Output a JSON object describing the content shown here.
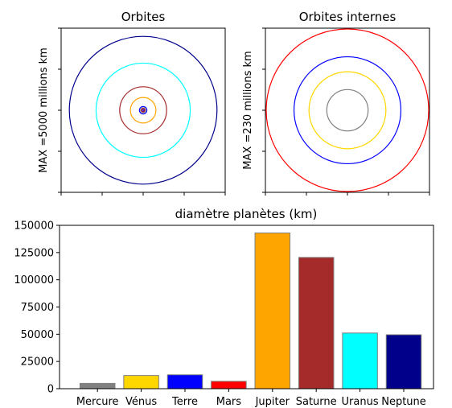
{
  "chart_data": [
    {
      "type": "orbit-diagram",
      "title": "Orbites",
      "ylabel": "MAX =5000 millions km",
      "max_radius": 5000,
      "orbits": [
        {
          "name": "Mercure",
          "radius": 58,
          "color": "#0000cd"
        },
        {
          "name": "Vénus",
          "radius": 108,
          "color": "#ff0000"
        },
        {
          "name": "Terre",
          "radius": 150,
          "color": "#808080"
        },
        {
          "name": "Mars",
          "radius": 228,
          "color": "#0000ff"
        },
        {
          "name": "Jupiter",
          "radius": 778,
          "color": "#ffa500"
        },
        {
          "name": "Saturne",
          "radius": 1430,
          "color": "#a52a2a"
        },
        {
          "name": "Uranus",
          "radius": 2870,
          "color": "#00ffff"
        },
        {
          "name": "Neptune",
          "radius": 4500,
          "color": "#00008b"
        }
      ]
    },
    {
      "type": "orbit-diagram",
      "title": "Orbites internes",
      "ylabel": "MAX =230 millions km",
      "max_radius": 230,
      "orbits": [
        {
          "name": "Mercure",
          "radius": 58,
          "color": "#808080"
        },
        {
          "name": "Vénus",
          "radius": 108,
          "color": "#ffd700"
        },
        {
          "name": "Terre",
          "radius": 150,
          "color": "#0000ff"
        },
        {
          "name": "Mars",
          "radius": 228,
          "color": "#ff0000"
        }
      ]
    },
    {
      "type": "bar",
      "title": "diamètre planètes (km)",
      "categories": [
        "Mercure",
        "Vénus",
        "Terre",
        "Mars",
        "Jupiter",
        "Saturne",
        "Uranus",
        "Neptune"
      ],
      "values": [
        4879,
        12104,
        12756,
        6792,
        142984,
        120536,
        51118,
        49528
      ],
      "colors": [
        "#808080",
        "#ffd700",
        "#0000ff",
        "#ff0000",
        "#ffa500",
        "#a52a2a",
        "#00ffff",
        "#00008b"
      ],
      "edge_color": "#808080",
      "ylim": [
        0,
        150000
      ],
      "yticks": [
        "0",
        "25000",
        "50000",
        "75000",
        "100000",
        "125000",
        "150000"
      ]
    }
  ]
}
